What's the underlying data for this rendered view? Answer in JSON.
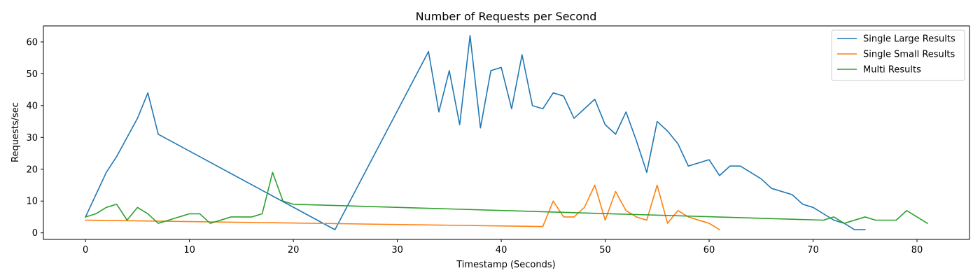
{
  "chart_data": {
    "type": "line",
    "title": "Number of Requests per Second",
    "xlabel": "Timestamp (Seconds)",
    "ylabel": "Requests/sec",
    "xlim": [
      -4.05,
      85.05
    ],
    "ylim": [
      -2.05,
      65.05
    ],
    "xticks": [
      0,
      10,
      20,
      30,
      40,
      50,
      60,
      70,
      80
    ],
    "yticks": [
      0,
      10,
      20,
      30,
      40,
      50,
      60
    ],
    "grid": false,
    "legend_position": "top-right",
    "series": [
      {
        "name": "Single Large Results",
        "color": "#1f77b4",
        "x": [
          0,
          2,
          3,
          5,
          6,
          7,
          24,
          33,
          34,
          35,
          36,
          37,
          38,
          39,
          40,
          41,
          42,
          43,
          44,
          45,
          46,
          47,
          49,
          50,
          51,
          52,
          53,
          54,
          55,
          56,
          57,
          58,
          60,
          61,
          62,
          63,
          65,
          66,
          68,
          69,
          70,
          72,
          73,
          74,
          75
        ],
        "y": [
          5,
          19,
          24,
          36,
          44,
          31,
          1,
          57,
          38,
          51,
          34,
          62,
          33,
          51,
          52,
          39,
          56,
          40,
          39,
          44,
          43,
          36,
          42,
          34,
          31,
          38,
          29,
          19,
          35,
          32,
          28,
          21,
          23,
          18,
          21,
          21,
          17,
          14,
          12,
          9,
          8,
          4,
          3,
          1,
          1
        ]
      },
      {
        "name": "Single Small Results",
        "color": "#ff7f0e",
        "x": [
          0,
          44,
          45,
          46,
          47,
          48,
          49,
          50,
          51,
          52,
          53,
          54,
          55,
          56,
          57,
          58,
          60,
          61
        ],
        "y": [
          4,
          2,
          10,
          5,
          5,
          8,
          15,
          4,
          13,
          7,
          5,
          4,
          15,
          3,
          7,
          5,
          3,
          1
        ]
      },
      {
        "name": "Multi Results",
        "color": "#2ca02c",
        "x": [
          0,
          1,
          2,
          3,
          4,
          5,
          6,
          7,
          10,
          11,
          12,
          14,
          16,
          17,
          18,
          19,
          20,
          71,
          72,
          73,
          75,
          76,
          78,
          79,
          81
        ],
        "y": [
          5,
          6,
          8,
          9,
          4,
          8,
          6,
          3,
          6,
          6,
          3,
          5,
          5,
          6,
          19,
          10,
          9,
          4,
          5,
          3,
          5,
          4,
          4,
          7,
          3
        ]
      }
    ]
  }
}
